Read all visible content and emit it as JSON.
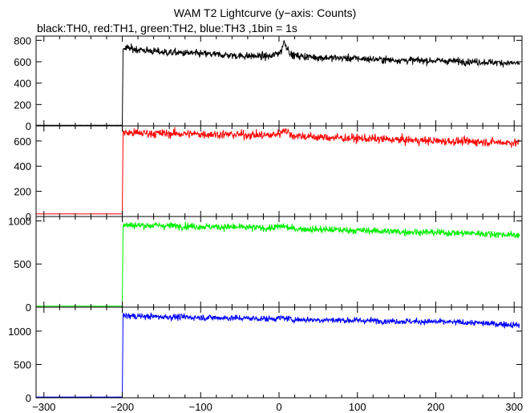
{
  "figure": {
    "title": "WAM T2 Lightcurve (y−axis: Counts)",
    "subtitle": "black:TH0, red:TH1, green:TH2, blue:TH3 ,1bin = 1s"
  },
  "chart_data": [
    {
      "type": "line",
      "series": [
        {
          "name": "TH0",
          "color": "#000000"
        }
      ],
      "xlim": [
        -310,
        310
      ],
      "ylim": [
        0,
        840
      ],
      "yticks": [
        0,
        200,
        400,
        600,
        800
      ],
      "xtick_labels_shown": false,
      "background_level": 5,
      "onset_x": -200,
      "profile": [
        [
          -199,
          730
        ],
        [
          -150,
          690
        ],
        [
          -100,
          675
        ],
        [
          -50,
          655
        ],
        [
          -10,
          650
        ],
        [
          3,
          700
        ],
        [
          6,
          790
        ],
        [
          10,
          740
        ],
        [
          16,
          660
        ],
        [
          50,
          640
        ],
        [
          100,
          630
        ],
        [
          150,
          615
        ],
        [
          200,
          610
        ],
        [
          250,
          600
        ],
        [
          307,
          585
        ]
      ]
    },
    {
      "type": "line",
      "series": [
        {
          "name": "TH1",
          "color": "#ff0000"
        }
      ],
      "xlim": [
        -310,
        310
      ],
      "ylim": [
        0,
        720
      ],
      "yticks": [
        0,
        200,
        400,
        600
      ],
      "xtick_labels_shown": false,
      "background_level": 20,
      "onset_x": -200,
      "profile": [
        [
          -199,
          665
        ],
        [
          -150,
          660
        ],
        [
          -100,
          655
        ],
        [
          -50,
          650
        ],
        [
          -10,
          645
        ],
        [
          3,
          665
        ],
        [
          6,
          700
        ],
        [
          10,
          675
        ],
        [
          16,
          645
        ],
        [
          50,
          630
        ],
        [
          100,
          620
        ],
        [
          150,
          610
        ],
        [
          200,
          600
        ],
        [
          250,
          595
        ],
        [
          307,
          585
        ]
      ]
    },
    {
      "type": "line",
      "series": [
        {
          "name": "TH2",
          "color": "#00ee00"
        }
      ],
      "xlim": [
        -310,
        310
      ],
      "ylim": [
        0,
        1050
      ],
      "yticks": [
        0,
        500,
        1000
      ],
      "xtick_labels_shown": false,
      "background_level": 10,
      "onset_x": -200,
      "profile": [
        [
          -199,
          950
        ],
        [
          -150,
          945
        ],
        [
          -100,
          935
        ],
        [
          -50,
          925
        ],
        [
          -10,
          915
        ],
        [
          5,
          940
        ],
        [
          16,
          910
        ],
        [
          50,
          900
        ],
        [
          100,
          890
        ],
        [
          150,
          875
        ],
        [
          200,
          865
        ],
        [
          250,
          855
        ],
        [
          307,
          835
        ]
      ]
    },
    {
      "type": "line",
      "series": [
        {
          "name": "TH3",
          "color": "#0000ff"
        }
      ],
      "xlim": [
        -310,
        310
      ],
      "ylim": [
        0,
        1360
      ],
      "yticks": [
        0,
        500,
        1000
      ],
      "xtick_labels_shown": true,
      "xticks": [
        -300,
        -200,
        -100,
        0,
        100,
        200,
        300
      ],
      "background_level": 10,
      "onset_x": -200,
      "profile": [
        [
          -199,
          1230
        ],
        [
          -150,
          1215
        ],
        [
          -100,
          1205
        ],
        [
          -50,
          1195
        ],
        [
          -10,
          1185
        ],
        [
          5,
          1200
        ],
        [
          16,
          1175
        ],
        [
          50,
          1170
        ],
        [
          100,
          1160
        ],
        [
          150,
          1150
        ],
        [
          200,
          1140
        ],
        [
          250,
          1125
        ],
        [
          307,
          1090
        ]
      ]
    }
  ]
}
